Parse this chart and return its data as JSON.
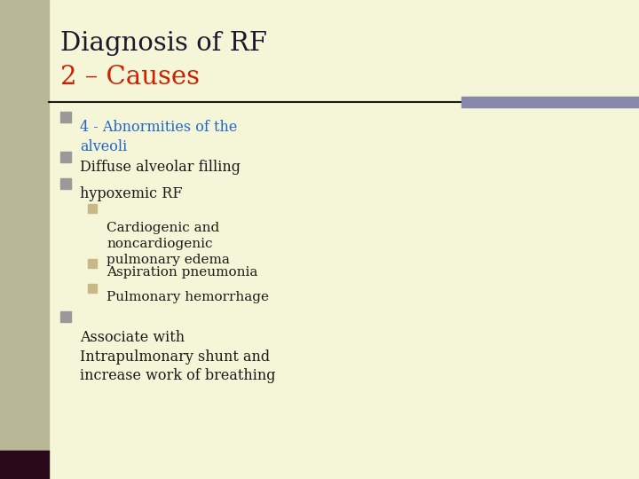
{
  "slide_bg": "#f5f5d8",
  "title_line1": "Diagnosis of RF",
  "title_line2": "2 – Causes",
  "title_line1_color": "#1a1a2e",
  "title_line2_color": "#cc2200",
  "separator_left_color": "#1a1a1a",
  "separator_right_color": "#8888aa",
  "left_bar_color": "#b8b896",
  "left_bar_bottom_color": "#2a0a1a",
  "bullet_color": "#999999",
  "sub_bullet_color": "#c8b888",
  "items": [
    {
      "level": 1,
      "text": "4 - Abnormities of the\nalveoli",
      "color": "#2266cc"
    },
    {
      "level": 1,
      "text": "Diffuse alveolar filling",
      "color": "#1a1a1a"
    },
    {
      "level": 1,
      "text": "hypoxemic RF",
      "color": "#1a1a1a"
    },
    {
      "level": 2,
      "text": "Cardiogenic and\nnoncardiogenic\npulmonary edema",
      "color": "#1a1a1a"
    },
    {
      "level": 2,
      "text": "Aspiration pneumonia",
      "color": "#1a1a1a"
    },
    {
      "level": 2,
      "text": "Pulmonary hemorrhage",
      "color": "#1a1a1a"
    },
    {
      "level": 1,
      "text": "Associate with\nIntrapulmonary shunt and\nincrease work of breathing",
      "color": "#1a1a1a"
    }
  ]
}
